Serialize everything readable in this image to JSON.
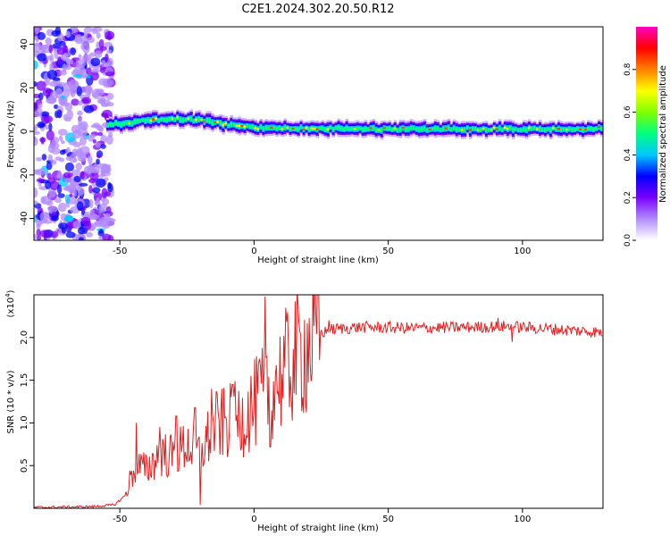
{
  "title": "C2E1.2024.302.20.50.R12",
  "chart_data": [
    {
      "type": "heatmap",
      "xlabel": "Height of straight line (km)",
      "ylabel": "Frequency (Hz)",
      "xlim": [
        -82,
        130
      ],
      "ylim": [
        -50,
        48
      ],
      "xticks": [
        "-50",
        "0",
        "50",
        "100"
      ],
      "xtick_values": [
        -50,
        0,
        50,
        100
      ],
      "yticks": [
        "40",
        "20",
        "0",
        "-20",
        "-40"
      ],
      "ytick_values": [
        40,
        20,
        0,
        -20,
        -40
      ],
      "colorbar": {
        "label": "Normalized spectral amplitude",
        "range": [
          0,
          1
        ],
        "ticks": [
          "0.0",
          "0.2",
          "0.4",
          "0.6",
          "0.8"
        ],
        "tick_values": [
          0,
          0.2,
          0.4,
          0.6,
          0.8
        ],
        "colormap": [
          "#ffffff",
          "#b38cff",
          "#7a00ff",
          "#0000ff",
          "#00c8ff",
          "#00ff80",
          "#80ff00",
          "#ffff00",
          "#ff8000",
          "#ff0000",
          "#ff00c0"
        ]
      },
      "features": {
        "noise_region_x": [
          -82,
          -53
        ],
        "band_start_x": -55,
        "band_center_hz": [
          [
            -55,
            3
          ],
          [
            -40,
            5
          ],
          [
            -30,
            6
          ],
          [
            -20,
            5
          ],
          [
            -10,
            3
          ],
          [
            0,
            1.5
          ],
          [
            20,
            1.5
          ],
          [
            50,
            1
          ],
          [
            80,
            1.2
          ],
          [
            110,
            1
          ],
          [
            130,
            1.5
          ]
        ],
        "band_halfwidth_hz": 3.5
      }
    },
    {
      "type": "line",
      "xlabel": "Height of straight line (km)",
      "ylabel": "SNR (10 * v/v)",
      "y_multiplier": "(x10",
      "y_exponent": "4",
      "xlim": [
        -82,
        130
      ],
      "ylim": [
        0,
        25000
      ],
      "xticks": [
        "-50",
        "0",
        "50",
        "100"
      ],
      "xtick_values": [
        -50,
        0,
        50,
        100
      ],
      "yticks": [
        "0.5",
        "1.0",
        "1.5",
        "2.0"
      ],
      "ytick_values": [
        5000,
        10000,
        15000,
        20000
      ],
      "series": [
        {
          "color": "#e02020",
          "envelope": {
            "x": [
              -82,
              -60,
              -52,
              -48,
              -46,
              -44,
              -40,
              -35,
              -30,
              -25,
              -20,
              -15,
              -10,
              -5,
              0,
              5,
              10,
              15,
              20,
              25,
              30,
              40,
              60,
              80,
              95,
              105,
              120,
              130
            ],
            "y": [
              100,
              200,
              400,
              1500,
              3500,
              5000,
              4500,
              6500,
              6000,
              7500,
              6500,
              9500,
              10000,
              10500,
              12000,
              14000,
              15500,
              17500,
              19000,
              20500,
              21000,
              21200,
              21100,
              21200,
              21300,
              21100,
              20800,
              20600
            ]
          },
          "spikes": [
            {
              "x": -44,
              "y": 10000
            },
            {
              "x": -35,
              "y": 9500
            },
            {
              "x": -29,
              "y": 10800
            },
            {
              "x": -22,
              "y": 11800
            },
            {
              "x": -20,
              "y": 400
            },
            {
              "x": -16,
              "y": 14000
            },
            {
              "x": -8,
              "y": 14500
            },
            {
              "x": 2,
              "y": 17500
            },
            {
              "x": 4,
              "y": 24800
            },
            {
              "x": 6,
              "y": 7200
            },
            {
              "x": 11,
              "y": 20200
            },
            {
              "x": 28,
              "y": 22000
            },
            {
              "x": 91,
              "y": 22300
            },
            {
              "x": 96,
              "y": 19500
            }
          ]
        }
      ]
    }
  ]
}
